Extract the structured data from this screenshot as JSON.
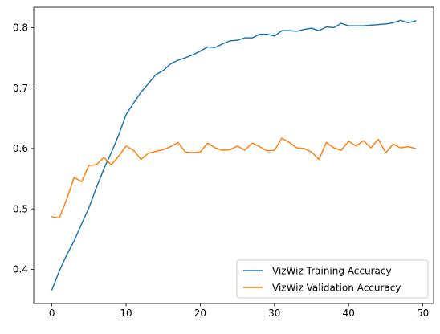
{
  "chart_data": {
    "type": "line",
    "title": "",
    "xlabel": "",
    "ylabel": "",
    "xlim": [
      -2.45,
      51.45
    ],
    "ylim": [
      0.3434,
      0.8337
    ],
    "x_ticks": [
      0,
      10,
      20,
      30,
      40,
      50
    ],
    "x_tick_labels": [
      "0",
      "10",
      "20",
      "30",
      "40",
      "50"
    ],
    "y_ticks": [
      0.4,
      0.5,
      0.6,
      0.7,
      0.8
    ],
    "y_tick_labels": [
      "0.4",
      "0.5",
      "0.6",
      "0.7",
      "0.8"
    ],
    "grid": false,
    "legend_position": "lower-right",
    "x": [
      0,
      1,
      2,
      3,
      4,
      5,
      6,
      7,
      8,
      9,
      10,
      11,
      12,
      13,
      14,
      15,
      16,
      17,
      18,
      19,
      20,
      21,
      22,
      23,
      24,
      25,
      26,
      27,
      28,
      29,
      30,
      31,
      32,
      33,
      34,
      35,
      36,
      37,
      38,
      39,
      40,
      41,
      42,
      43,
      44,
      45,
      46,
      47,
      48,
      49
    ],
    "series": [
      {
        "name": "VizWiz Training Accuracy",
        "color": "#1f77b4",
        "values": [
          0.366,
          0.397,
          0.424,
          0.447,
          0.475,
          0.502,
          0.535,
          0.566,
          0.593,
          0.622,
          0.656,
          0.675,
          0.693,
          0.707,
          0.722,
          0.729,
          0.74,
          0.746,
          0.75,
          0.755,
          0.761,
          0.768,
          0.767,
          0.773,
          0.778,
          0.779,
          0.783,
          0.783,
          0.789,
          0.789,
          0.786,
          0.795,
          0.795,
          0.794,
          0.797,
          0.799,
          0.795,
          0.801,
          0.8,
          0.807,
          0.803,
          0.803,
          0.803,
          0.804,
          0.805,
          0.806,
          0.808,
          0.812,
          0.808,
          0.811
        ]
      },
      {
        "name": "VizWiz Validation Accuracy",
        "color": "#ff7f0e",
        "values": [
          0.487,
          0.485,
          0.516,
          0.552,
          0.545,
          0.572,
          0.573,
          0.585,
          0.573,
          0.587,
          0.604,
          0.597,
          0.582,
          0.592,
          0.595,
          0.598,
          0.603,
          0.61,
          0.594,
          0.593,
          0.594,
          0.609,
          0.601,
          0.597,
          0.598,
          0.604,
          0.597,
          0.609,
          0.603,
          0.596,
          0.597,
          0.617,
          0.61,
          0.601,
          0.6,
          0.594,
          0.582,
          0.61,
          0.601,
          0.597,
          0.612,
          0.604,
          0.613,
          0.601,
          0.615,
          0.593,
          0.607,
          0.601,
          0.603,
          0.6
        ]
      }
    ]
  }
}
